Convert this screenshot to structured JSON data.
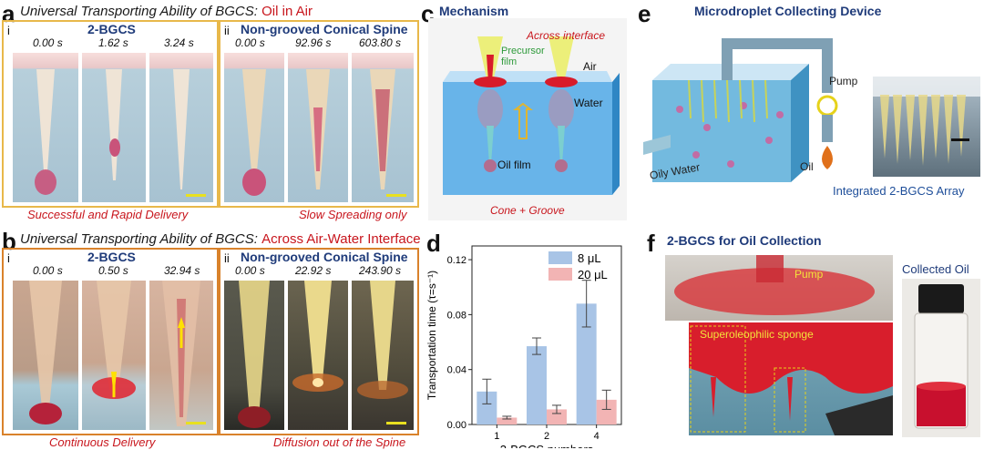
{
  "panel_a": {
    "letter": "a",
    "title_main": "Universal Transporting Ability of ",
    "title_abbr": "BGCS",
    "title_colon": ": ",
    "title_cond": "Oil in Air",
    "left": {
      "roman": "i",
      "name": "2-BGCS",
      "times": [
        "0.00 s",
        "1.62 s",
        "3.24 s"
      ],
      "caption": "Successful and Rapid Delivery"
    },
    "right": {
      "roman": "ii",
      "name": "Non-grooved Conical Spine",
      "times": [
        "0.00 s",
        "92.96 s",
        "603.80 s"
      ],
      "caption": "Slow Spreading only"
    }
  },
  "panel_b": {
    "letter": "b",
    "title_main": "Universal Transporting Ability of ",
    "title_abbr": "BGCS",
    "title_colon": ": ",
    "title_cond": "Across Air-Water Interface",
    "left": {
      "roman": "i",
      "name": "2-BGCS",
      "times": [
        "0.00 s",
        "0.50 s",
        "32.94 s"
      ],
      "caption": "Continuous Delivery"
    },
    "right": {
      "roman": "ii",
      "name": "Non-grooved Conical Spine",
      "times": [
        "0.00 s",
        "22.92 s",
        "243.90 s"
      ],
      "caption": "Diffusion out of the Spine"
    }
  },
  "panel_c": {
    "letter": "c",
    "title": "Mechanism",
    "labels": {
      "across": "Across interface",
      "precursor": "Precursor film",
      "air": "Air",
      "water": "Water",
      "oil_film": "Oil film"
    },
    "caption": "Cone + Groove"
  },
  "panel_d": {
    "letter": "d",
    "chart_data": {
      "type": "bar",
      "categories": [
        "1",
        "2",
        "4"
      ],
      "series": [
        {
          "name": "8 μL",
          "values": [
            0.024,
            0.057,
            0.088
          ],
          "errors": [
            0.009,
            0.006,
            0.017
          ],
          "color": "#a8c4e6"
        },
        {
          "name": "20 μL",
          "values": [
            0.005,
            0.011,
            0.018
          ],
          "errors": [
            0.001,
            0.003,
            0.007
          ],
          "color": "#f2b4b4"
        }
      ],
      "xlabel": "2-BGCS numbers",
      "ylabel": "Transportation time (τ=s⁻¹)",
      "ylim": [
        0,
        0.13
      ],
      "yticks": [
        "0.00",
        "0.04",
        "0.08",
        "0.12"
      ],
      "legend_position": "top-right",
      "grid": false
    }
  },
  "panel_e": {
    "letter": "e",
    "title": "Microdroplet Collecting Device",
    "labels": {
      "pump": "Pump",
      "oil": "Oil",
      "oily_water": "Oily Water"
    },
    "array_caption": "Integrated 2-BGCS Array"
  },
  "panel_f": {
    "letter": "f",
    "title": "2-BGCS for Oil Collection",
    "labels": {
      "pump": "Pump",
      "sponge": "Superoleophilic sponge"
    },
    "collected": "Collected Oil"
  }
}
